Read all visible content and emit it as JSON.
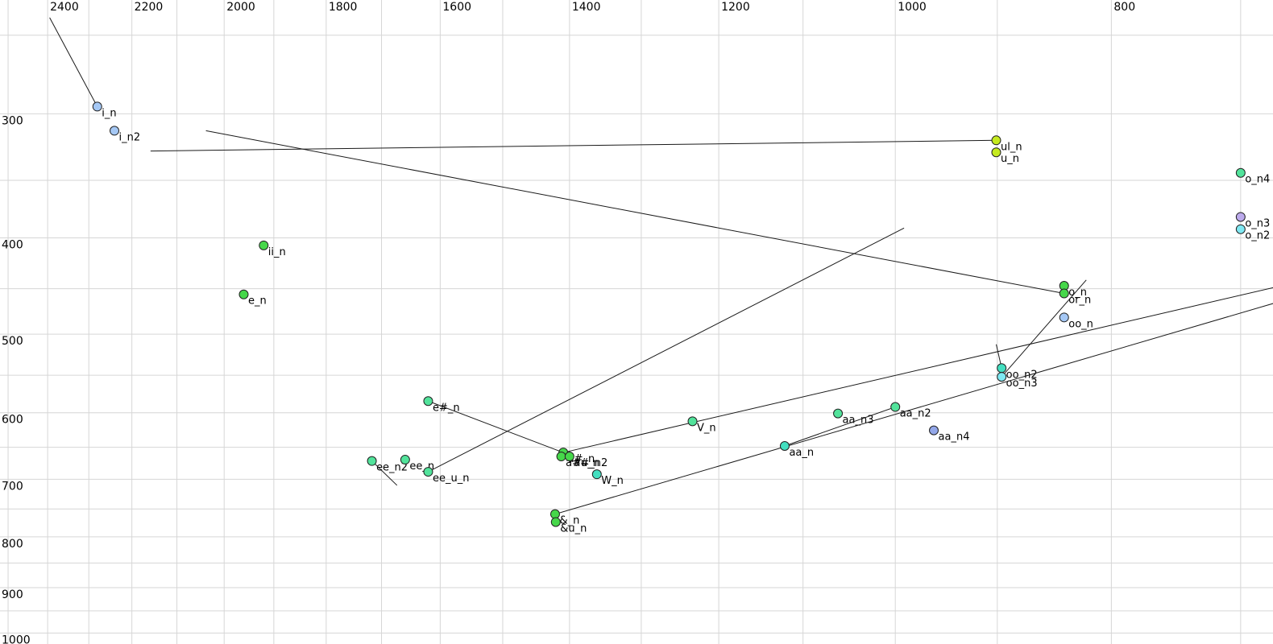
{
  "chart_data": {
    "type": "scatter",
    "title": "",
    "description": "Vowel formant plot: F2 (Hz) on reversed logarithmic top axis, F1 (Hz) on logarithmic left axis, with vowel tokens and formant trajectory lines",
    "x_axis": {
      "unit": "Hz",
      "scale": "log",
      "reversed": true,
      "position": "top",
      "left_value": 2521,
      "right_value": 677,
      "gridlines": [
        2500,
        2400,
        2300,
        2200,
        2100,
        2000,
        1900,
        1800,
        1700,
        1600,
        1500,
        1400,
        1300,
        1200,
        1100,
        1000,
        900,
        800,
        700
      ],
      "tick_values": [
        2400,
        2200,
        2000,
        1800,
        1600,
        1400,
        1200,
        1000,
        800
      ],
      "tick_labels": [
        "2400",
        "2200",
        "2000",
        "1800",
        "1600",
        "1400",
        "1200",
        "1000",
        "800"
      ]
    },
    "y_axis": {
      "unit": "Hz",
      "scale": "log",
      "position": "left",
      "top_value": 230.4,
      "bottom_value": 1025.7,
      "gridlines": [
        250,
        300,
        350,
        400,
        450,
        500,
        550,
        600,
        650,
        700,
        750,
        800,
        850,
        900,
        950,
        1000
      ],
      "tick_values": [
        300,
        400,
        500,
        600,
        700,
        800,
        900,
        1000
      ],
      "tick_labels": [
        "300",
        "400",
        "500",
        "600",
        "700",
        "800",
        "900",
        "1000"
      ]
    },
    "styles": {
      "background": "#ffffff",
      "grid_color": "#d6d6d6",
      "line_color": "#1a1a1a",
      "point_stroke": "#222222",
      "label_color": "#000000",
      "tick_font_px": 14,
      "label_font_px": 13,
      "point_radius": 5.5,
      "palette": {
        "green": "#46d74a",
        "mint": "#52e39b",
        "aqua": "#43dfc0",
        "cyan": "#7fe8f2",
        "lightblue": "#a5c8f5",
        "lavender": "#bcaaec",
        "periwinkle": "#93a7e9",
        "yellowgreen": "#c5ea1f"
      }
    },
    "points": [
      {
        "label": "i_n",
        "f2": 2280,
        "f1": 295,
        "color": "#a5c8f5"
      },
      {
        "label": "i_n2",
        "f2": 2240,
        "f1": 312,
        "color": "#a5c8f5"
      },
      {
        "label": "ul_n",
        "f2": 901,
        "f1": 319,
        "color": "#c5ea1f"
      },
      {
        "label": "u_n",
        "f2": 901,
        "f1": 328,
        "color": "#c5ea1f"
      },
      {
        "label": "o_n4",
        "f2": 700,
        "f1": 344,
        "color": "#52e39b"
      },
      {
        "label": "o_n3",
        "f2": 700,
        "f1": 381,
        "color": "#bcaaec"
      },
      {
        "label": "o_n2",
        "f2": 700,
        "f1": 392,
        "color": "#7fe8f2"
      },
      {
        "label": "ii_n",
        "f2": 1920,
        "f1": 407,
        "color": "#46d74a"
      },
      {
        "label": "e_n",
        "f2": 1960,
        "f1": 456,
        "color": "#46d74a"
      },
      {
        "label": "o_n",
        "f2": 840,
        "f1": 447,
        "color": "#46d74a"
      },
      {
        "label": "or_n",
        "f2": 840,
        "f1": 455,
        "color": "#46d74a"
      },
      {
        "label": "oo_n",
        "f2": 840,
        "f1": 481,
        "color": "#a5c8f5"
      },
      {
        "label": "oo_n2",
        "f2": 896,
        "f1": 541,
        "color": "#43dfc0"
      },
      {
        "label": "oo_n3",
        "f2": 896,
        "f1": 552,
        "color": "#7fe8f2"
      },
      {
        "label": "e#_n",
        "f2": 1620,
        "f1": 584,
        "color": "#52e39b"
      },
      {
        "label": "V_n",
        "f2": 1233,
        "f1": 612,
        "color": "#52e39b"
      },
      {
        "label": "aa_n3",
        "f2": 1061,
        "f1": 601,
        "color": "#52e39b"
      },
      {
        "label": "aa_n2",
        "f2": 1000,
        "f1": 592,
        "color": "#52e39b"
      },
      {
        "label": "aa_n4",
        "f2": 961,
        "f1": 625,
        "color": "#93a7e9"
      },
      {
        "label": "aa_n",
        "f2": 1121,
        "f1": 648,
        "color": "#43dfc0"
      },
      {
        "label": "ee_n2",
        "f2": 1717,
        "f1": 671,
        "color": "#52e39b"
      },
      {
        "label": "ee_n",
        "f2": 1659,
        "f1": 669,
        "color": "#52e39b"
      },
      {
        "label": "ee_u_n",
        "f2": 1620,
        "f1": 688,
        "color": "#52e39b"
      },
      {
        "label": "a#_n",
        "f2": 1409,
        "f1": 658,
        "color": "#46d74a"
      },
      {
        "label": "a#u_n",
        "f2": 1412,
        "f1": 664,
        "color": "#46d74a"
      },
      {
        "label": "a#_n2",
        "f2": 1400,
        "f1": 664,
        "color": "#46d74a"
      },
      {
        "label": "W_n",
        "f2": 1361,
        "f1": 692,
        "color": "#43dfc0"
      },
      {
        "label": "&_n",
        "f2": 1421,
        "f1": 759,
        "color": "#46d74a"
      },
      {
        "label": "&u_n",
        "f2": 1420,
        "f1": 773,
        "color": "#46d74a"
      }
    ],
    "lines": [
      {
        "name": "traj-into-i_n",
        "from": {
          "f2": 2395,
          "f1": 240
        },
        "to": {
          "f2": 2280,
          "f1": 295
        }
      },
      {
        "name": "traj-into-ul_n",
        "from": {
          "f2": 2158,
          "f1": 327
        },
        "to": {
          "f2": 901,
          "f1": 319
        }
      },
      {
        "name": "traj-into-or_n",
        "from": {
          "f2": 2038,
          "f1": 312
        },
        "to": {
          "f2": 840,
          "f1": 455
        }
      },
      {
        "name": "traj-ee_u_n-up",
        "from": {
          "f2": 1620,
          "f1": 688
        },
        "to": {
          "f2": 991,
          "f1": 391
        }
      },
      {
        "name": "traj-e#_n-to-a#_n",
        "from": {
          "f2": 1620,
          "f1": 584
        },
        "to": {
          "f2": 1409,
          "f1": 658
        }
      },
      {
        "name": "traj-a#_n-offright",
        "from": {
          "f2": 1409,
          "f1": 658
        },
        "to": {
          "f2": 660,
          "f1": 443
        }
      },
      {
        "name": "traj-&_n-offright",
        "from": {
          "f2": 1421,
          "f1": 759
        },
        "to": {
          "f2": 660,
          "f1": 458
        }
      },
      {
        "name": "traj-aa_n-to-aa_n2",
        "from": {
          "f2": 1121,
          "f1": 648
        },
        "to": {
          "f2": 1000,
          "f1": 592
        }
      },
      {
        "name": "traj-oo_n3-steep",
        "from": {
          "f2": 896,
          "f1": 552
        },
        "to": {
          "f2": 821,
          "f1": 441
        }
      },
      {
        "name": "traj-stub-oo_n2",
        "from": {
          "f2": 901,
          "f1": 512
        },
        "to": {
          "f2": 896,
          "f1": 541
        }
      },
      {
        "name": "traj-ee_n2-stub",
        "from": {
          "f2": 1717,
          "f1": 671
        },
        "to": {
          "f2": 1673,
          "f1": 710
        }
      }
    ]
  }
}
